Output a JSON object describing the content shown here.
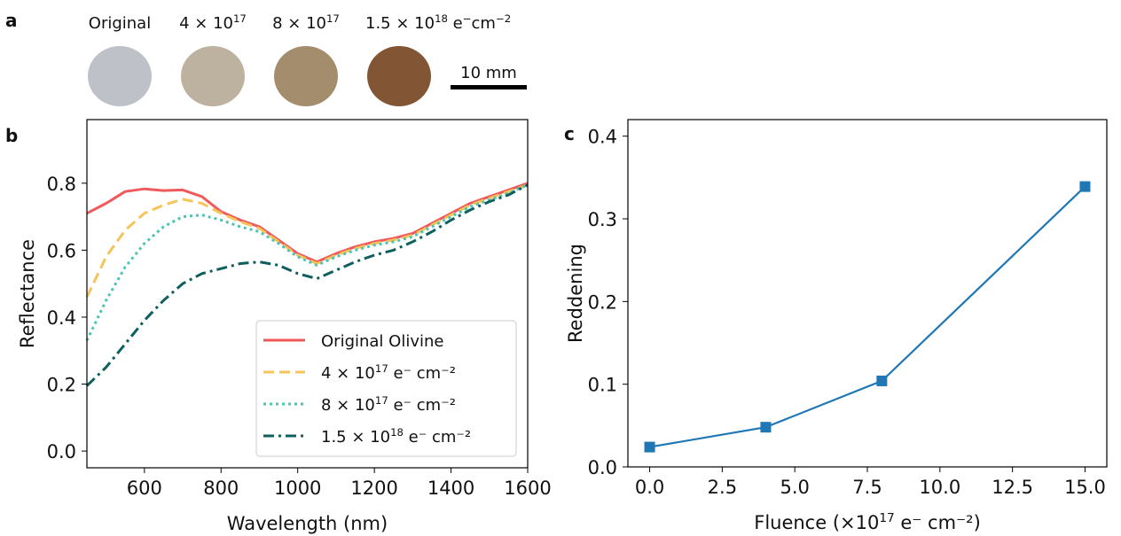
{
  "panel_a": {
    "letter": "a",
    "samples": [
      {
        "label": "Original",
        "sup": "",
        "color": "#bfc1c9"
      },
      {
        "label": "4 × 10",
        "sup": "17",
        "color": "#bdb29f"
      },
      {
        "label": "8 × 10",
        "sup": "17",
        "color": "#a48d6c"
      },
      {
        "label": "1.5 × 10",
        "sup": "18",
        "color": "#825634"
      }
    ],
    "unit": {
      "base": "e",
      "sup1": "−",
      "mid": "cm",
      "sup2": "−2"
    },
    "scale_bar": "10 mm"
  },
  "chart_data": [
    {
      "panel": "b",
      "type": "line",
      "xlabel": "Wavelength (nm)",
      "ylabel": "Reflectance",
      "xlim": [
        450,
        1600
      ],
      "ylim": [
        -0.05,
        0.99
      ],
      "xticks": [
        600,
        800,
        1000,
        1200,
        1400,
        1600
      ],
      "yticks": [
        0.0,
        0.2,
        0.4,
        0.6,
        0.8
      ],
      "grid": false,
      "legend_placement": "lower-right",
      "x": [
        450,
        500,
        550,
        600,
        650,
        700,
        750,
        800,
        850,
        900,
        950,
        1000,
        1050,
        1100,
        1150,
        1200,
        1250,
        1300,
        1350,
        1400,
        1450,
        1500,
        1550,
        1600
      ],
      "series": [
        {
          "name": "Original Olivine",
          "name_sup": "",
          "name_tail": "",
          "color": "#f05a5a",
          "dash": "solid",
          "values": [
            0.71,
            0.74,
            0.775,
            0.783,
            0.778,
            0.78,
            0.76,
            0.715,
            0.69,
            0.67,
            0.63,
            0.59,
            0.565,
            0.59,
            0.61,
            0.625,
            0.635,
            0.65,
            0.68,
            0.71,
            0.74,
            0.76,
            0.78,
            0.8
          ]
        },
        {
          "name": "4 × 10",
          "name_sup": "17",
          "name_tail": " e⁻ cm⁻²",
          "color": "#f5c55a",
          "dash": "dashed",
          "values": [
            0.46,
            0.58,
            0.66,
            0.71,
            0.735,
            0.752,
            0.74,
            0.71,
            0.685,
            0.665,
            0.625,
            0.585,
            0.56,
            0.585,
            0.605,
            0.62,
            0.63,
            0.645,
            0.675,
            0.705,
            0.735,
            0.755,
            0.775,
            0.795
          ]
        },
        {
          "name": "8 × 10",
          "name_sup": "17",
          "name_tail": " e⁻ cm⁻²",
          "color": "#4cc4b4",
          "dash": "dotted",
          "values": [
            0.33,
            0.45,
            0.55,
            0.62,
            0.67,
            0.7,
            0.705,
            0.69,
            0.67,
            0.655,
            0.62,
            0.58,
            0.555,
            0.58,
            0.6,
            0.615,
            0.625,
            0.64,
            0.67,
            0.7,
            0.73,
            0.75,
            0.77,
            0.795
          ]
        },
        {
          "name": "1.5 × 10",
          "name_sup": "18",
          "name_tail": " e⁻ cm⁻²",
          "color": "#0f5f5f",
          "dash": "dashdot",
          "values": [
            0.195,
            0.25,
            0.32,
            0.39,
            0.45,
            0.5,
            0.53,
            0.545,
            0.56,
            0.565,
            0.555,
            0.53,
            0.515,
            0.54,
            0.565,
            0.585,
            0.6,
            0.625,
            0.655,
            0.69,
            0.72,
            0.745,
            0.765,
            0.795
          ]
        }
      ]
    },
    {
      "panel": "c",
      "type": "line",
      "xlabel": "Fluence (×10",
      "xlabel_sup": "17",
      "xlabel_tail": " e⁻ cm⁻²)",
      "ylabel": "Reddening",
      "xlim": [
        -0.75,
        15.75
      ],
      "ylim": [
        0.0,
        0.42
      ],
      "xticks": [
        0.0,
        2.5,
        5.0,
        7.5,
        10.0,
        12.5,
        15.0
      ],
      "yticks": [
        0.0,
        0.1,
        0.2,
        0.3,
        0.4
      ],
      "grid": false,
      "marker": "square",
      "color": "#1f77b4",
      "x": [
        0,
        4,
        8,
        15
      ],
      "values": [
        0.024,
        0.048,
        0.104,
        0.339
      ]
    }
  ]
}
